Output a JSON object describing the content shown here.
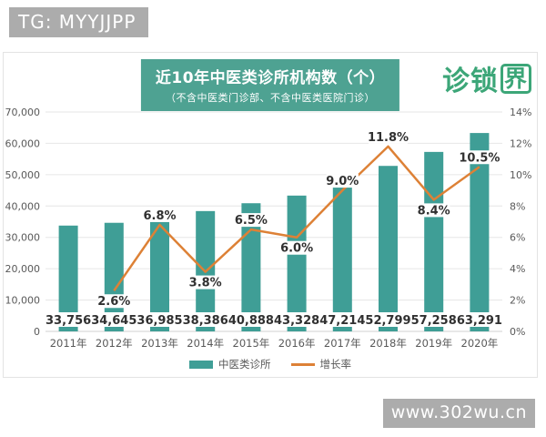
{
  "overlays": {
    "tg_badge": "TG: MYYJJPP",
    "watermark": "www.302wu.cn"
  },
  "logo": {
    "text_main": "诊锁",
    "text_boxed": "界"
  },
  "colors": {
    "bar": "#3F9E96",
    "line": "#DD8136",
    "title_bg": "#4EA292",
    "logo_green": "#3CA678",
    "badge_bg": "#ACACAC",
    "grid": "#E6E6E6",
    "axis_line": "#D2D2D2",
    "tick_text": "#595959",
    "label_text": "#303030"
  },
  "chart_data": {
    "type": "bar",
    "title": "近10年中医类诊所机构数（个）",
    "subtitle": "（不含中医类门诊部、不含中医类医院门诊）",
    "categories": [
      "2011年",
      "2012年",
      "2013年",
      "2014年",
      "2015年",
      "2016年",
      "2017年",
      "2018年",
      "2019年",
      "2020年"
    ],
    "series": [
      {
        "name": "中医类诊所",
        "type": "bar",
        "axis": "left",
        "color": "#3F9E96",
        "values": [
          33756,
          34645,
          36985,
          38386,
          40888,
          43328,
          47214,
          52799,
          57258,
          63291
        ],
        "labels": [
          "33,756",
          "34,645",
          "36,985",
          "38,386",
          "40,888",
          "43,328",
          "47,214",
          "52,799",
          "57,258",
          "63,291"
        ]
      },
      {
        "name": "增长率",
        "type": "line",
        "axis": "right",
        "color": "#DD8136",
        "values": [
          null,
          2.6,
          6.8,
          3.8,
          6.5,
          6.0,
          9.0,
          11.8,
          8.4,
          10.5
        ],
        "labels": [
          null,
          "2.6%",
          "6.8%",
          "3.8%",
          "6.5%",
          "6.0%",
          "9.0%",
          "11.8%",
          "8.4%",
          "10.5%"
        ],
        "label_side": [
          null,
          "below",
          "above",
          "below",
          "above",
          "below",
          "above",
          "above",
          "below",
          "above"
        ]
      }
    ],
    "left_axis": {
      "min": 0,
      "max": 70000,
      "step": 10000,
      "tick_labels": [
        "0",
        "10,000",
        "20,000",
        "30,000",
        "40,000",
        "50,000",
        "60,000",
        "70,000"
      ]
    },
    "right_axis": {
      "min": 0,
      "max": 14,
      "step": 2,
      "tick_labels": [
        "0%",
        "2%",
        "4%",
        "6%",
        "8%",
        "10%",
        "12%",
        "14%"
      ]
    },
    "grid": true,
    "legend_position": "bottom",
    "legend": [
      {
        "label": "中医类诊所",
        "marker": "rect",
        "color": "#3F9E96"
      },
      {
        "label": "增长率",
        "marker": "line",
        "color": "#DD8136"
      }
    ]
  }
}
